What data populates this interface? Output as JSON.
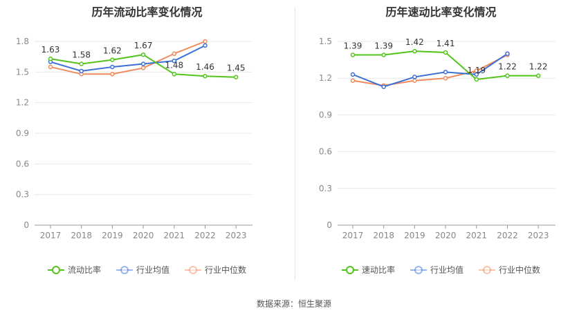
{
  "source_text": "数据来源：恒生聚源",
  "chart_data": [
    {
      "type": "line",
      "title": "历年流动比率变化情况",
      "categories": [
        "2017",
        "2018",
        "2019",
        "2020",
        "2021",
        "2022",
        "2023"
      ],
      "ylim": [
        0,
        1.8
      ],
      "yticks": [
        0,
        0.3,
        0.6,
        0.9,
        1.2,
        1.5,
        1.8
      ],
      "ytick_labels": [
        "0",
        "0.3",
        "0.6",
        "0.9",
        "1.2",
        "1.5",
        "1.8"
      ],
      "grid": true,
      "legend_position": "bottom",
      "series": [
        {
          "name": "流动比率",
          "color": "#52c41a",
          "values": [
            1.63,
            1.58,
            1.62,
            1.67,
            1.48,
            1.46,
            1.45
          ],
          "labels": [
            "1.63",
            "1.58",
            "1.62",
            "1.67",
            "1.48",
            "1.46",
            "1.45"
          ]
        },
        {
          "name": "行业均值",
          "color": "#3a6fd8",
          "values": [
            1.6,
            1.51,
            1.55,
            1.58,
            1.61,
            1.76,
            null
          ]
        },
        {
          "name": "行业中位数",
          "color": "#f08a5d",
          "values": [
            1.55,
            1.48,
            1.48,
            1.54,
            1.68,
            1.8,
            null
          ]
        }
      ]
    },
    {
      "type": "line",
      "title": "历年速动比率变化情况",
      "categories": [
        "2017",
        "2018",
        "2019",
        "2020",
        "2021",
        "2022",
        "2023"
      ],
      "ylim": [
        0,
        1.5
      ],
      "yticks": [
        0,
        0.3,
        0.6,
        0.9,
        1.2,
        1.5
      ],
      "ytick_labels": [
        "0",
        "0.3",
        "0.6",
        "0.9",
        "1.2",
        "1.5"
      ],
      "grid": true,
      "legend_position": "bottom",
      "series": [
        {
          "name": "速动比率",
          "color": "#52c41a",
          "values": [
            1.39,
            1.39,
            1.42,
            1.41,
            1.19,
            1.22,
            1.22
          ],
          "labels": [
            "1.39",
            "1.39",
            "1.42",
            "1.41",
            "1.19",
            "1.22",
            "1.22"
          ]
        },
        {
          "name": "行业均值",
          "color": "#3a6fd8",
          "values": [
            1.23,
            1.13,
            1.21,
            1.25,
            1.23,
            1.4,
            null
          ]
        },
        {
          "name": "行业中位数",
          "color": "#f08a5d",
          "values": [
            1.18,
            1.14,
            1.18,
            1.2,
            1.26,
            1.39,
            null
          ]
        }
      ]
    }
  ]
}
